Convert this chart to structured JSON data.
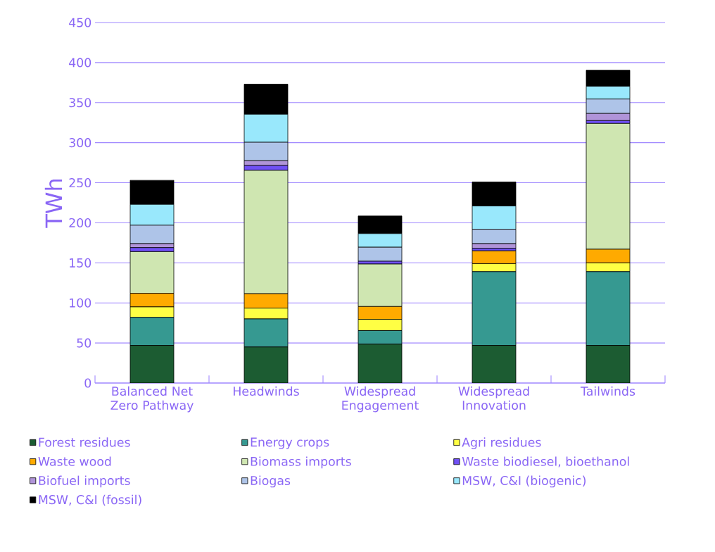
{
  "chart_data": {
    "type": "bar",
    "stacked": true,
    "ylabel": "TWh",
    "categories": [
      "Balanced Net Zero Pathway",
      "Headwinds",
      "Widespread Engagement",
      "Widespread Innovation",
      "Tailwinds"
    ],
    "series": [
      {
        "name": "Forest residues",
        "color": "#1c5c32",
        "values": [
          47,
          45,
          48.5,
          47,
          47
        ]
      },
      {
        "name": "Energy crops",
        "color": "#369991",
        "values": [
          35,
          35,
          17,
          92,
          92
        ]
      },
      {
        "name": "Agri residues",
        "color": "#ffff44",
        "values": [
          13,
          13.5,
          14,
          10,
          11
        ]
      },
      {
        "name": "Waste wood",
        "color": "#ffaa00",
        "values": [
          17,
          18,
          16,
          16,
          17
        ]
      },
      {
        "name": "Biomass imports",
        "color": "#cfe6b1",
        "values": [
          52,
          154,
          53,
          0,
          157
        ]
      },
      {
        "name": "Waste biodiesel, bioethanol",
        "color": "#7050f5",
        "values": [
          5,
          6,
          3.5,
          3,
          3.5
        ]
      },
      {
        "name": "Biofuel imports",
        "color": "#b094d8",
        "values": [
          5,
          6,
          0,
          6,
          9
        ]
      },
      {
        "name": "Biogas",
        "color": "#aec4e8",
        "values": [
          23,
          23,
          17.5,
          18,
          18
        ]
      },
      {
        "name": "MSW, C&I (biogenic)",
        "color": "#99e8fc",
        "values": [
          26,
          35,
          17,
          29,
          16
        ]
      },
      {
        "name": "MSW, C&I (fossil)",
        "color": "#000000",
        "values": [
          30,
          37.5,
          22,
          30,
          20
        ]
      }
    ],
    "ylim": [
      0,
      450
    ],
    "yticks": [
      0,
      50,
      100,
      150,
      200,
      250,
      300,
      350,
      400,
      450
    ],
    "grid": "y",
    "legend": "bottom"
  }
}
